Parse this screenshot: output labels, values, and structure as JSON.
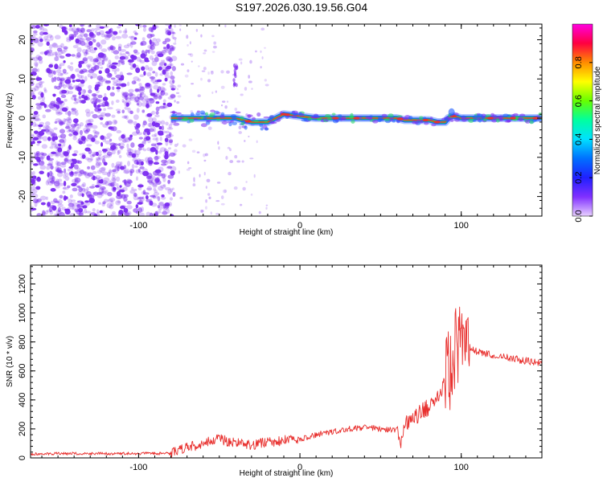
{
  "page": {
    "title": "S197.2026.030.19.56.G04"
  },
  "colors": {
    "snr_line": "#e8302e",
    "track_core": "#e8322e",
    "track_mid": "#22d860",
    "track_outer": "#1d5cff",
    "noise": "#7b2bf0",
    "colorbar": [
      "#ff00e0",
      "#ff0040",
      "#ff8c00",
      "#ffff00",
      "#66ff00",
      "#00ffa0",
      "#00e0ff",
      "#0070ff",
      "#2020ff",
      "#8030ff",
      "#e8d0ff"
    ]
  },
  "chart_data": [
    {
      "type": "heatmap",
      "title": "",
      "xlabel": "Height of straight line (km)",
      "ylabel": "Frequency (Hz)",
      "xlim": [
        -167,
        150
      ],
      "ylim": [
        -25,
        24
      ],
      "x_ticks": [
        -100,
        0,
        100
      ],
      "x_tick_labels": [
        "-100",
        "0",
        "100"
      ],
      "y_ticks": [
        -20,
        -10,
        0,
        10,
        20
      ],
      "y_tick_labels": [
        "-20",
        "-10",
        "0",
        "10",
        "20"
      ],
      "colorbar": {
        "label": "Normalized spectral amplitude",
        "range": [
          0,
          1
        ],
        "ticks": [
          0,
          0.2,
          0.4,
          0.6,
          0.8
        ],
        "tick_labels": [
          "0.0",
          "0.2",
          "0.4",
          "0.6",
          "0.8"
        ]
      },
      "signal_track": {
        "x": [
          -80,
          -60,
          -40,
          -30,
          -25,
          -20,
          -15,
          -10,
          0,
          10,
          20,
          30,
          40,
          50,
          60,
          65,
          70,
          80,
          85,
          88,
          90,
          92,
          95,
          100,
          110,
          120,
          130,
          140,
          150
        ],
        "y": [
          0,
          0,
          0,
          -1,
          -1,
          -1,
          0,
          1,
          0.5,
          0,
          0,
          0,
          0,
          0,
          0,
          -0.5,
          -0.5,
          -0.5,
          -1,
          -1,
          -1,
          0,
          0.5,
          0,
          0,
          0,
          0,
          0,
          0
        ]
      },
      "noise_region": {
        "x_range": [
          -167,
          -80
        ]
      }
    },
    {
      "type": "line",
      "title": "",
      "xlabel": "Height of straight line (km)",
      "ylabel": "SNR (10 * v/v)",
      "xlim": [
        -167,
        150
      ],
      "ylim": [
        0,
        1330
      ],
      "x_ticks": [
        -100,
        0,
        100
      ],
      "x_tick_labels": [
        "-100",
        "0",
        "100"
      ],
      "y_ticks": [
        0,
        200,
        400,
        600,
        800,
        1000,
        1200
      ],
      "y_tick_labels": [
        "0",
        "200",
        "400",
        "600",
        "800",
        "1000",
        "1200"
      ],
      "series": [
        {
          "x": [
            -167,
            -150,
            -130,
            -110,
            -90,
            -80,
            -70,
            -60,
            -50,
            -40,
            -30,
            -20,
            -10,
            0,
            10,
            20,
            30,
            40,
            50,
            60,
            63,
            65,
            70,
            75,
            80,
            85,
            90,
            95,
            98,
            100,
            103,
            105,
            110,
            120,
            130,
            140,
            150
          ],
          "values": [
            25,
            30,
            30,
            30,
            30,
            30,
            70,
            100,
            130,
            100,
            90,
            110,
            120,
            130,
            160,
            180,
            200,
            210,
            200,
            190,
            100,
            230,
            260,
            320,
            350,
            420,
            520,
            650,
            820,
            800,
            760,
            760,
            730,
            710,
            690,
            670,
            650
          ]
        }
      ]
    }
  ]
}
